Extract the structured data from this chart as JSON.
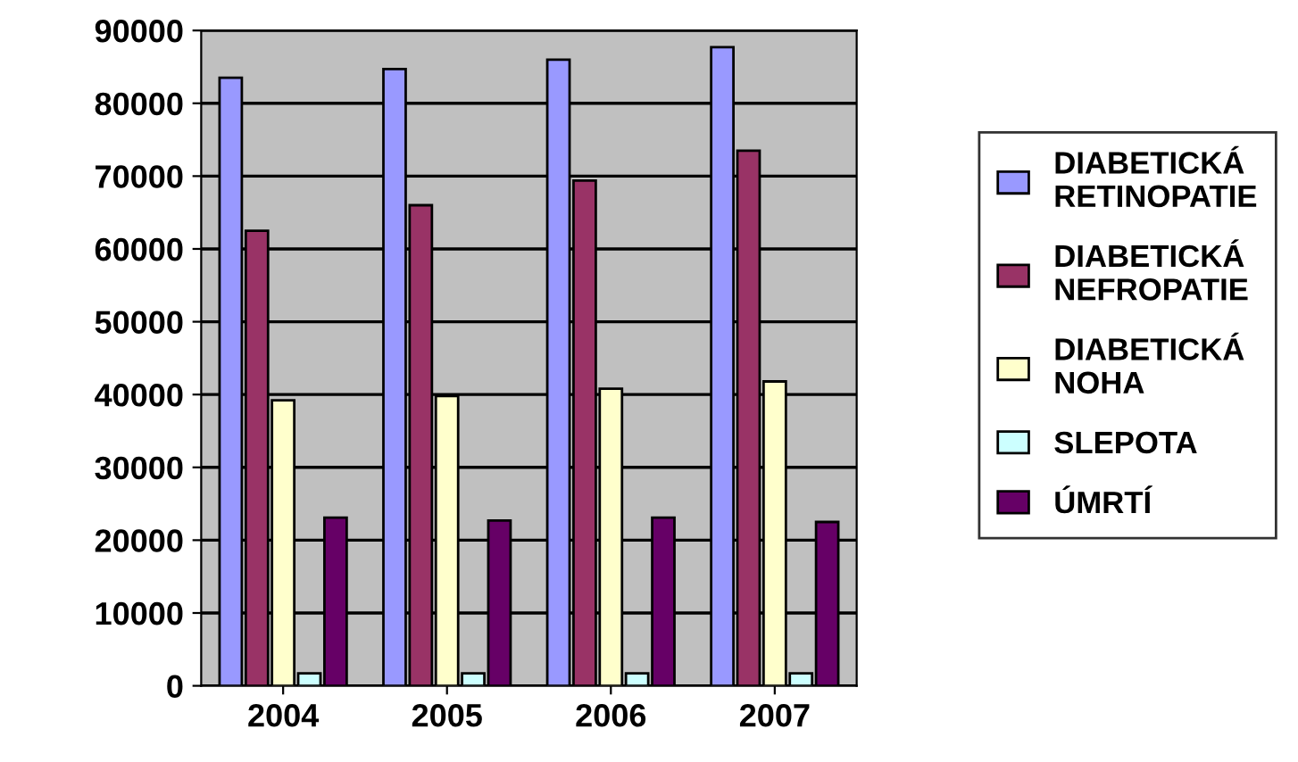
{
  "chart_data": {
    "type": "bar",
    "categories": [
      "2004",
      "2005",
      "2006",
      "2007"
    ],
    "series": [
      {
        "name": "DIABETICKÁ RETINOPATIE",
        "color": "#9999ff",
        "values": [
          83500,
          84700,
          86000,
          87700
        ]
      },
      {
        "name": "DIABETICKÁ NEFROPATIE",
        "color": "#993366",
        "values": [
          62500,
          66000,
          69400,
          73500
        ]
      },
      {
        "name": "DIABETICKÁ NOHA",
        "color": "#ffffcc",
        "values": [
          39200,
          39800,
          40800,
          41800
        ]
      },
      {
        "name": "SLEPOTA",
        "color": "#ccffff",
        "values": [
          1700,
          1700,
          1700,
          1700
        ]
      },
      {
        "name": "ÚMRTÍ",
        "color": "#660066",
        "values": [
          23100,
          22700,
          23100,
          22500
        ]
      }
    ],
    "ylim": [
      0,
      90000
    ],
    "yticks": [
      0,
      10000,
      20000,
      30000,
      40000,
      50000,
      60000,
      70000,
      80000,
      90000
    ],
    "grid": "y",
    "legend": "right"
  }
}
